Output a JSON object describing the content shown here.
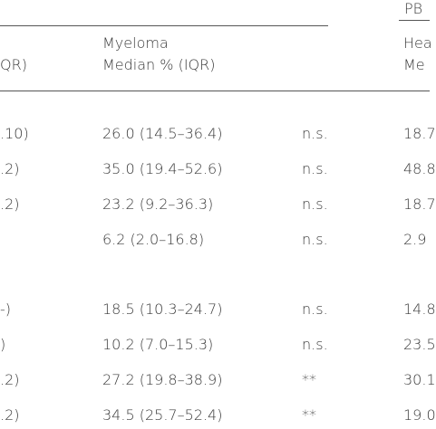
{
  "header": {
    "group_label": "PB",
    "left_col": "QR)",
    "myeloma_col": [
      "Myeloma",
      "Median % (IQR)"
    ],
    "right_col": [
      "Hea",
      "Me"
    ]
  },
  "table": {
    "rows": [
      [
        ".10)",
        "26.0 (14.5–36.4)",
        "n.s.",
        "18.7"
      ],
      [
        ".2)",
        "35.0 (19.4–52.6)",
        "n.s.",
        "48.8"
      ],
      [
        ".2)",
        "23.2 (9.2–36.3)",
        "n.s.",
        "18.7"
      ],
      [
        null,
        "6.2 (2.0–16.8)",
        "n.s.",
        "2.9"
      ],
      [
        "-)",
        "18.5 (10.3–24.7)",
        "n.s.",
        "14.8"
      ],
      [
        ")",
        "10.2 (7.0–15.3)",
        "n.s.",
        "23.5"
      ],
      [
        ".2)",
        "27.2 (19.8–38.9)",
        "**",
        "30.1"
      ],
      [
        ".2)",
        "34.5 (25.7–52.4)",
        "**",
        "19.0"
      ]
    ]
  }
}
